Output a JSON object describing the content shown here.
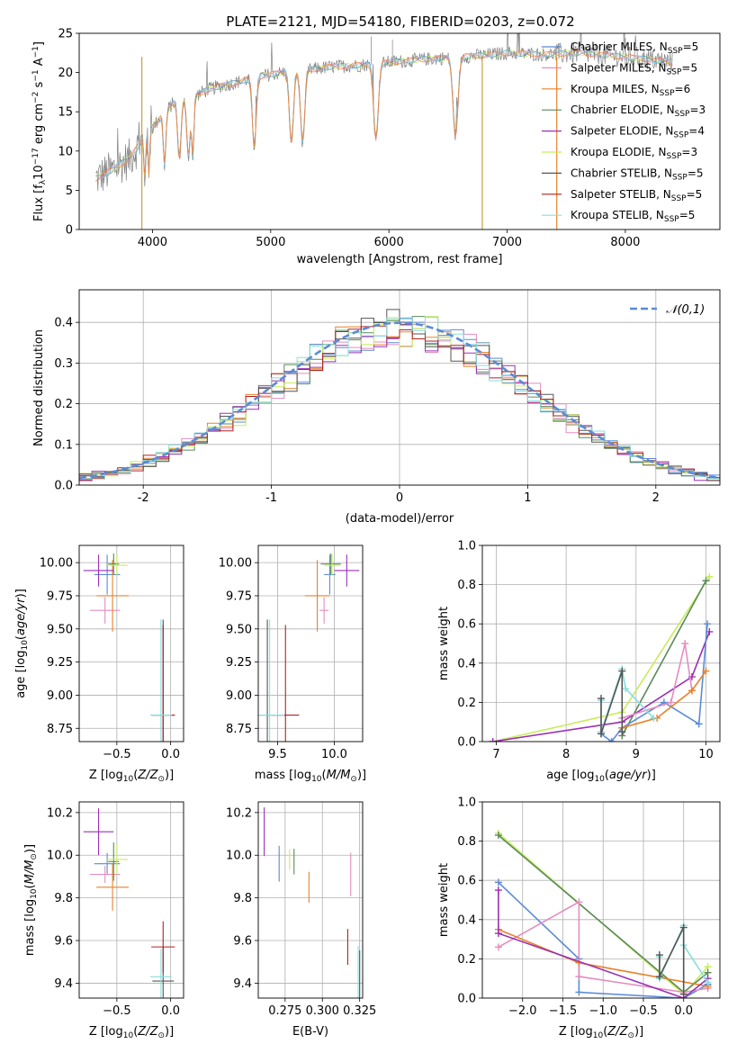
{
  "title": "PLATE=2121, MJD=54180, FIBERID=0203, z=0.072",
  "colors": {
    "Chabrier MILES": "#5b8bd6",
    "Salpeter MILES": "#e48dc0",
    "Kroupa MILES": "#e8822a",
    "Chabrier ELODIE": "#5a8a5a",
    "Salpeter ELODIE": "#9b30b5",
    "Kroupa ELODIE": "#c8ec5a",
    "Chabrier STELIB": "#555555",
    "Salpeter STELIB": "#b22222",
    "Kroupa STELIB": "#88dede",
    "data": "#808080",
    "normal": "#5b8bd6"
  },
  "chart_data": [
    {
      "id": "spectrum",
      "type": "line",
      "title": "PLATE=2121, MJD=54180, FIBERID=0203, z=0.072",
      "xlabel": "wavelength [Angstrom, rest frame]",
      "ylabel": "Flux [f_λ 10^-17 erg cm^-2 s^-1 A^-1]",
      "xlim": [
        3380,
        8800
      ],
      "ylim": [
        0,
        25
      ],
      "xticks": [
        4000,
        5000,
        6000,
        7000,
        8000
      ],
      "yticks": [
        0,
        5,
        10,
        15,
        20,
        25
      ],
      "legend": [
        {
          "name": "Chabrier MILES",
          "nssp": "5"
        },
        {
          "name": "Salpeter MILES",
          "nssp": "5"
        },
        {
          "name": "Kroupa MILES",
          "nssp": "6"
        },
        {
          "name": "Chabrier ELODIE",
          "nssp": "3"
        },
        {
          "name": "Salpeter ELODIE",
          "nssp": "4"
        },
        {
          "name": "Kroupa ELODIE",
          "nssp": "3"
        },
        {
          "name": "Chabrier STELIB",
          "nssp": "5"
        },
        {
          "name": "Salpeter STELIB",
          "nssp": "5"
        },
        {
          "name": "Kroupa STELIB",
          "nssp": "5"
        }
      ],
      "continuum": [
        [
          3520,
          6.5
        ],
        [
          3650,
          7.5
        ],
        [
          3800,
          9
        ],
        [
          3900,
          11
        ],
        [
          3950,
          12
        ],
        [
          4050,
          14
        ],
        [
          4200,
          16.5
        ],
        [
          4350,
          17
        ],
        [
          4500,
          18
        ],
        [
          4700,
          18.7
        ],
        [
          4900,
          19.5
        ],
        [
          5100,
          20
        ],
        [
          5300,
          20.3
        ],
        [
          5500,
          20.7
        ],
        [
          5800,
          21
        ],
        [
          6000,
          21.3
        ],
        [
          6300,
          21.7
        ],
        [
          6600,
          22
        ],
        [
          6800,
          22.2
        ],
        [
          7000,
          22.5
        ],
        [
          7300,
          22.3
        ],
        [
          7600,
          22.5
        ],
        [
          8000,
          22
        ],
        [
          8300,
          21.5
        ],
        [
          8400,
          21.3
        ]
      ],
      "absorption": [
        [
          3934,
          7
        ],
        [
          3969,
          7
        ],
        [
          4102,
          11
        ],
        [
          4227,
          14.5
        ],
        [
          4304,
          14
        ],
        [
          4341,
          10
        ],
        [
          4861,
          16.5
        ],
        [
          5175,
          17
        ],
        [
          5270,
          18
        ],
        [
          5890,
          19.5
        ],
        [
          6563,
          21
        ]
      ],
      "model_vertical_lines": [
        [
          3910,
          "#c8a040"
        ],
        [
          6790,
          "#c8a040"
        ],
        [
          7420,
          "#e8822a"
        ]
      ]
    },
    {
      "id": "residuals",
      "type": "histogram",
      "xlabel": "(data-model)/error",
      "ylabel": "Normed distribution",
      "xlim": [
        -2.5,
        2.5
      ],
      "ylim": [
        0,
        0.48
      ],
      "xticks": [
        -2,
        -1,
        0,
        1,
        2
      ],
      "yticks": [
        0.0,
        0.1,
        0.2,
        0.3,
        0.4
      ],
      "bin_width": 0.1,
      "reference": {
        "name": "𝒩(0,1)",
        "mean": 0,
        "sigma": 1
      }
    },
    {
      "id": "age_vs_Z",
      "type": "scatter",
      "xlabel": "Z [log10(Z/Z⊙)]",
      "ylabel": "age [log10(age/yr)]",
      "xlim": [
        -0.85,
        0.12
      ],
      "ylim": [
        8.65,
        10.13
      ],
      "xticks": [
        -0.5,
        0.0
      ],
      "xtick_labels": [
        "−0.5",
        "0.0"
      ],
      "yticks": [
        8.75,
        9.0,
        9.25,
        9.5,
        9.75,
        10.0
      ],
      "yticklabels": [
        "8.75",
        "9.00",
        "9.25",
        "9.50",
        "9.75",
        "10.00"
      ]
    },
    {
      "id": "age_vs_mass",
      "type": "scatter",
      "xlabel": "mass [log10(M/M⊙)]",
      "ylabel": "",
      "xlim": [
        9.33,
        10.25
      ],
      "ylim": [
        8.65,
        10.13
      ],
      "xticks": [
        9.5,
        10.0
      ],
      "xtick_labels": [
        "9.5",
        "10.0"
      ],
      "yticks": [
        8.75,
        9.0,
        9.25,
        9.5,
        9.75,
        10.0
      ],
      "yticklabels": [
        "8.75",
        "9.00",
        "9.25",
        "9.50",
        "9.75",
        "10.00"
      ]
    },
    {
      "id": "weight_vs_age",
      "type": "line",
      "xlabel": "age [log10(age/yr)]",
      "ylabel": "mass weight",
      "xlim": [
        6.8,
        10.2
      ],
      "ylim": [
        0,
        1.0
      ],
      "xticks": [
        7,
        8,
        9,
        10
      ],
      "yticks": [
        0.0,
        0.2,
        0.4,
        0.6,
        0.8,
        1.0
      ],
      "series": [
        {
          "name": "Kroupa ELODIE",
          "x": [
            6.95,
            8.8,
            10.05
          ],
          "y": [
            0.0,
            0.15,
            0.84
          ]
        },
        {
          "name": "Chabrier ELODIE",
          "x": [
            8.8,
            10.0
          ],
          "y": [
            0.03,
            0.82
          ]
        },
        {
          "name": "Salpeter ELODIE",
          "x": [
            6.95,
            8.8,
            9.8,
            10.05
          ],
          "y": [
            0.0,
            0.1,
            0.33,
            0.56
          ]
        },
        {
          "name": "Chabrier MILES",
          "x": [
            8.5,
            8.65,
            8.8,
            9.4,
            9.9,
            10.02
          ],
          "y": [
            0.04,
            0.0,
            0.07,
            0.2,
            0.09,
            0.6
          ]
        },
        {
          "name": "Salpeter MILES",
          "x": [
            8.8,
            9.5,
            9.7,
            9.8
          ],
          "y": [
            0.12,
            0.2,
            0.5,
            0.26
          ]
        },
        {
          "name": "Kroupa MILES",
          "x": [
            8.8,
            9.3,
            9.8,
            10.0
          ],
          "y": [
            0.07,
            0.12,
            0.26,
            0.36
          ]
        },
        {
          "name": "Kroupa STELIB",
          "x": [
            8.5,
            8.5,
            8.8,
            8.85,
            9.25
          ],
          "y": [
            0.21,
            0.05,
            0.37,
            0.27,
            0.12
          ]
        },
        {
          "name": "Chabrier STELIB",
          "x": [
            8.5,
            8.5,
            8.8,
            8.8
          ],
          "y": [
            0.22,
            0.04,
            0.36,
            0.05
          ]
        }
      ]
    },
    {
      "id": "mass_vs_Z",
      "type": "scatter",
      "xlabel": "Z [log10(Z/Z⊙)]",
      "ylabel": "mass [log10(M/M⊙)]",
      "xlim": [
        -0.85,
        0.12
      ],
      "ylim": [
        9.33,
        10.25
      ],
      "xticks": [
        -0.5,
        0.0
      ],
      "xtick_labels": [
        "−0.5",
        "0.0"
      ],
      "yticks": [
        9.4,
        9.6,
        9.8,
        10.0,
        10.2
      ],
      "yticklabels": [
        "9.4",
        "9.6",
        "9.8",
        "10.0",
        "10.2"
      ]
    },
    {
      "id": "mass_vs_EBV",
      "type": "scatter",
      "xlabel": "E(B-V)",
      "ylabel": "",
      "xlim": [
        0.257,
        0.327
      ],
      "ylim": [
        9.33,
        10.25
      ],
      "xticks": [
        0.275,
        0.3,
        0.325
      ],
      "xtick_labels": [
        "0.275",
        "0.300",
        "0.325"
      ],
      "yticks": [
        9.4,
        9.6,
        9.8,
        10.0,
        10.2
      ],
      "yticklabels": [
        "9.4",
        "9.6",
        "9.8",
        "10.0",
        "10.2"
      ]
    },
    {
      "id": "weight_vs_Z",
      "type": "line",
      "xlabel": "Z [log10(Z/Z⊙)]",
      "ylabel": "mass weight",
      "xlim": [
        -2.5,
        0.45
      ],
      "ylim": [
        0,
        1.0
      ],
      "xticks": [
        -2.0,
        -1.5,
        -1.0,
        -0.5,
        0.0
      ],
      "xtick_labels": [
        "−2.0",
        "−1.5",
        "−1.0",
        "−0.5",
        "0.0"
      ],
      "yticks": [
        0.0,
        0.2,
        0.4,
        0.6,
        0.8,
        1.0
      ],
      "series": [
        {
          "name": "Kroupa ELODIE",
          "x": [
            -2.3,
            0.0,
            0.3
          ],
          "y": [
            0.84,
            0.02,
            0.16
          ]
        },
        {
          "name": "Chabrier ELODIE",
          "x": [
            -2.3,
            0.0,
            0.3
          ],
          "y": [
            0.83,
            0.03,
            0.13
          ]
        },
        {
          "name": "Chabrier MILES",
          "x": [
            -2.3,
            -1.3,
            -1.3,
            0.0,
            0.3
          ],
          "y": [
            0.59,
            0.2,
            0.03,
            0.0,
            0.07
          ]
        },
        {
          "name": "Salpeter MILES",
          "x": [
            -2.3,
            -1.3,
            -1.3,
            0.0,
            0.3
          ],
          "y": [
            0.26,
            0.49,
            0.11,
            0.03,
            0.05
          ]
        },
        {
          "name": "Kroupa MILES",
          "x": [
            -2.3,
            -1.3,
            0.3
          ],
          "y": [
            0.35,
            0.18,
            0.06
          ]
        },
        {
          "name": "Salpeter ELODIE",
          "x": [
            -2.3,
            -2.3,
            0.0,
            0.3
          ],
          "y": [
            0.55,
            0.33,
            0.0,
            0.1
          ]
        },
        {
          "name": "Kroupa STELIB",
          "x": [
            -0.3,
            -0.3,
            0.0,
            0.0,
            0.3
          ],
          "y": [
            0.21,
            0.1,
            0.37,
            0.27,
            0.08
          ]
        },
        {
          "name": "Chabrier STELIB",
          "x": [
            -0.3,
            -0.3,
            0.0,
            0.0
          ],
          "y": [
            0.22,
            0.11,
            0.36,
            0.02
          ]
        }
      ]
    }
  ],
  "fits": [
    {
      "name": "Chabrier MILES",
      "Z": [
        -0.59,
        0.12
      ],
      "age": [
        9.91,
        0.15
      ],
      "mass": [
        9.96,
        0.05
      ],
      "ebv": [
        0.271,
        0.14
      ]
    },
    {
      "name": "Salpeter MILES",
      "Z": [
        -0.61,
        0.14
      ],
      "age": [
        9.64,
        0.1
      ],
      "mass": [
        9.91,
        0.04
      ],
      "ebv": [
        0.319,
        0.17
      ]
    },
    {
      "name": "Kroupa MILES",
      "Z": [
        -0.54,
        0.15
      ],
      "age": [
        9.75,
        0.27
      ],
      "mass": [
        9.85,
        0.11
      ],
      "ebv": [
        0.291,
        0.12
      ]
    },
    {
      "name": "Chabrier ELODIE",
      "Z": [
        -0.53,
        0.05
      ],
      "age": [
        9.99,
        0.08
      ],
      "mass": [
        9.97,
        0.09
      ],
      "ebv": [
        0.281,
        0.1
      ]
    },
    {
      "name": "Salpeter ELODIE",
      "Z": [
        -0.67,
        0.14
      ],
      "age": [
        9.94,
        0.12
      ],
      "mass": [
        10.11,
        0.11
      ],
      "ebv": [
        0.261,
        0.19
      ]
    },
    {
      "name": "Kroupa ELODIE",
      "Z": [
        -0.5,
        0.1
      ],
      "age": [
        9.98,
        0.08
      ],
      "mass": [
        9.98,
        0.07
      ],
      "ebv": [
        0.278,
        0.08
      ]
    },
    {
      "name": "Chabrier STELIB",
      "Z": [
        -0.07,
        0.1
      ],
      "age": [
        8.85,
        0.72
      ],
      "mass": [
        9.41,
        0.16
      ],
      "ebv": [
        0.325,
        0.24
      ]
    },
    {
      "name": "Salpeter STELIB",
      "Z": [
        -0.07,
        0.11
      ],
      "age": [
        8.85,
        0.68
      ],
      "mass": [
        9.57,
        0.12
      ],
      "ebv": [
        0.317,
        0.14
      ]
    },
    {
      "name": "Kroupa STELIB",
      "Z": [
        -0.09,
        0.1
      ],
      "age": [
        8.85,
        0.72
      ],
      "mass": [
        9.43,
        0.13
      ],
      "ebv": [
        0.324,
        0.24
      ]
    }
  ]
}
